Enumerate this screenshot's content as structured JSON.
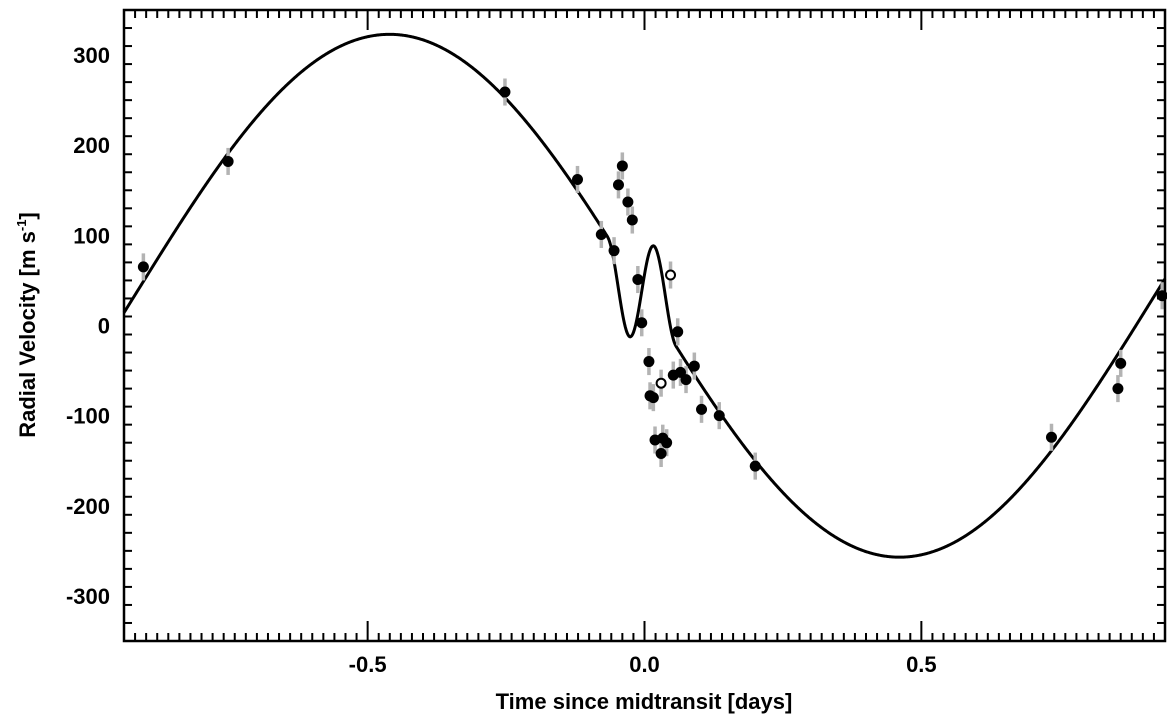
{
  "chart_data": {
    "type": "scatter",
    "xlabel": "Time since midtransit [days]",
    "ylabel_main": "Radial Velocity [m s",
    "ylabel_sup": "-1",
    "ylabel_tail": "]",
    "xlim": [
      -0.94,
      0.94
    ],
    "ylim": [
      -350,
      350
    ],
    "xticks": [
      -0.5,
      0.0,
      0.5
    ],
    "xtick_labels": [
      "-0.5",
      "0.0",
      "0.5"
    ],
    "yticks": [
      -300,
      -200,
      -100,
      0,
      100,
      200,
      300
    ],
    "ytick_labels": [
      "-300",
      "-200",
      "-100",
      "0",
      "100",
      "200",
      "300"
    ],
    "grid": false,
    "series": [
      {
        "marker": "filled-circle",
        "errorbar_color": "#b3b3b3",
        "points": [
          {
            "x": -0.905,
            "y": 65,
            "err": 15
          },
          {
            "x": -0.752,
            "y": 182,
            "err": 15
          },
          {
            "x": -0.252,
            "y": 259,
            "err": 15
          },
          {
            "x": -0.121,
            "y": 162,
            "err": 15
          },
          {
            "x": -0.078,
            "y": 101,
            "err": 15
          },
          {
            "x": -0.055,
            "y": 83,
            "err": 15
          },
          {
            "x": -0.047,
            "y": 156,
            "err": 15
          },
          {
            "x": -0.04,
            "y": 177,
            "err": 15
          },
          {
            "x": -0.03,
            "y": 137,
            "err": 15
          },
          {
            "x": -0.022,
            "y": 117,
            "err": 15
          },
          {
            "x": -0.012,
            "y": 51,
            "err": 15
          },
          {
            "x": -0.005,
            "y": 3,
            "err": 15
          },
          {
            "x": 0.008,
            "y": -40,
            "err": 15
          },
          {
            "x": 0.01,
            "y": -78,
            "err": 15
          },
          {
            "x": 0.016,
            "y": -80,
            "err": 15
          },
          {
            "x": 0.019,
            "y": -127,
            "err": 15
          },
          {
            "x": 0.03,
            "y": -142,
            "err": 15
          },
          {
            "x": 0.033,
            "y": -125,
            "err": 15
          },
          {
            "x": 0.04,
            "y": -130,
            "err": 15
          },
          {
            "x": 0.052,
            "y": -55,
            "err": 15
          },
          {
            "x": 0.06,
            "y": -7,
            "err": 15
          },
          {
            "x": 0.065,
            "y": -52,
            "err": 15
          },
          {
            "x": 0.075,
            "y": -60,
            "err": 15
          },
          {
            "x": 0.09,
            "y": -45,
            "err": 15
          },
          {
            "x": 0.103,
            "y": -93,
            "err": 15
          },
          {
            "x": 0.135,
            "y": -100,
            "err": 15
          },
          {
            "x": 0.2,
            "y": -156,
            "err": 15
          },
          {
            "x": 0.735,
            "y": -124,
            "err": 15
          },
          {
            "x": 0.855,
            "y": -70,
            "err": 15
          },
          {
            "x": 0.86,
            "y": -42,
            "err": 15
          },
          {
            "x": 0.935,
            "y": 33,
            "err": 15
          }
        ]
      },
      {
        "marker": "open-circle",
        "errorbar_color": "#b3b3b3",
        "points": [
          {
            "x": 0.03,
            "y": -64,
            "err": 15
          },
          {
            "x": 0.047,
            "y": 56,
            "err": 15
          }
        ]
      }
    ],
    "model_curve": {
      "K": 290,
      "offset": 33,
      "period_days": 1.842,
      "rm_amplitude": 105,
      "rm_center": -0.005,
      "rm_halfwidth": 0.062
    }
  }
}
